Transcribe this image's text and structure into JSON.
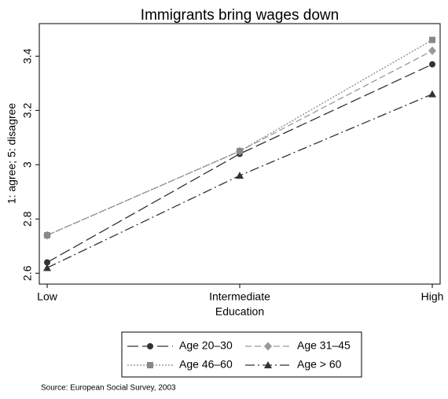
{
  "chart_data": {
    "type": "line",
    "title": "Immigrants bring wages down",
    "ylabel": "1: agree; 5: disagree",
    "xlabel": "Education",
    "source": "Source: European Social Survey, 2003",
    "categories": [
      "Low",
      "Intermediate",
      "High"
    ],
    "ylim": [
      2.56,
      3.52
    ],
    "yticks": [
      2.6,
      2.8,
      3,
      3.2,
      3.4
    ],
    "series": [
      {
        "name": "Age 20–30",
        "color": "#333333",
        "dash": "longdash",
        "marker": "circle",
        "values": [
          2.64,
          3.04,
          3.37
        ]
      },
      {
        "name": "Age 31–45",
        "color": "#999999",
        "dash": "dash",
        "marker": "diamond",
        "values": [
          2.74,
          3.05,
          3.42
        ]
      },
      {
        "name": "Age 46–60",
        "color": "#888888",
        "dash": "dot",
        "marker": "square",
        "values": [
          2.74,
          3.05,
          3.46
        ]
      },
      {
        "name": "Age > 60",
        "color": "#333333",
        "dash": "dashdot",
        "marker": "triangle",
        "values": [
          2.62,
          2.96,
          3.26
        ]
      }
    ]
  }
}
